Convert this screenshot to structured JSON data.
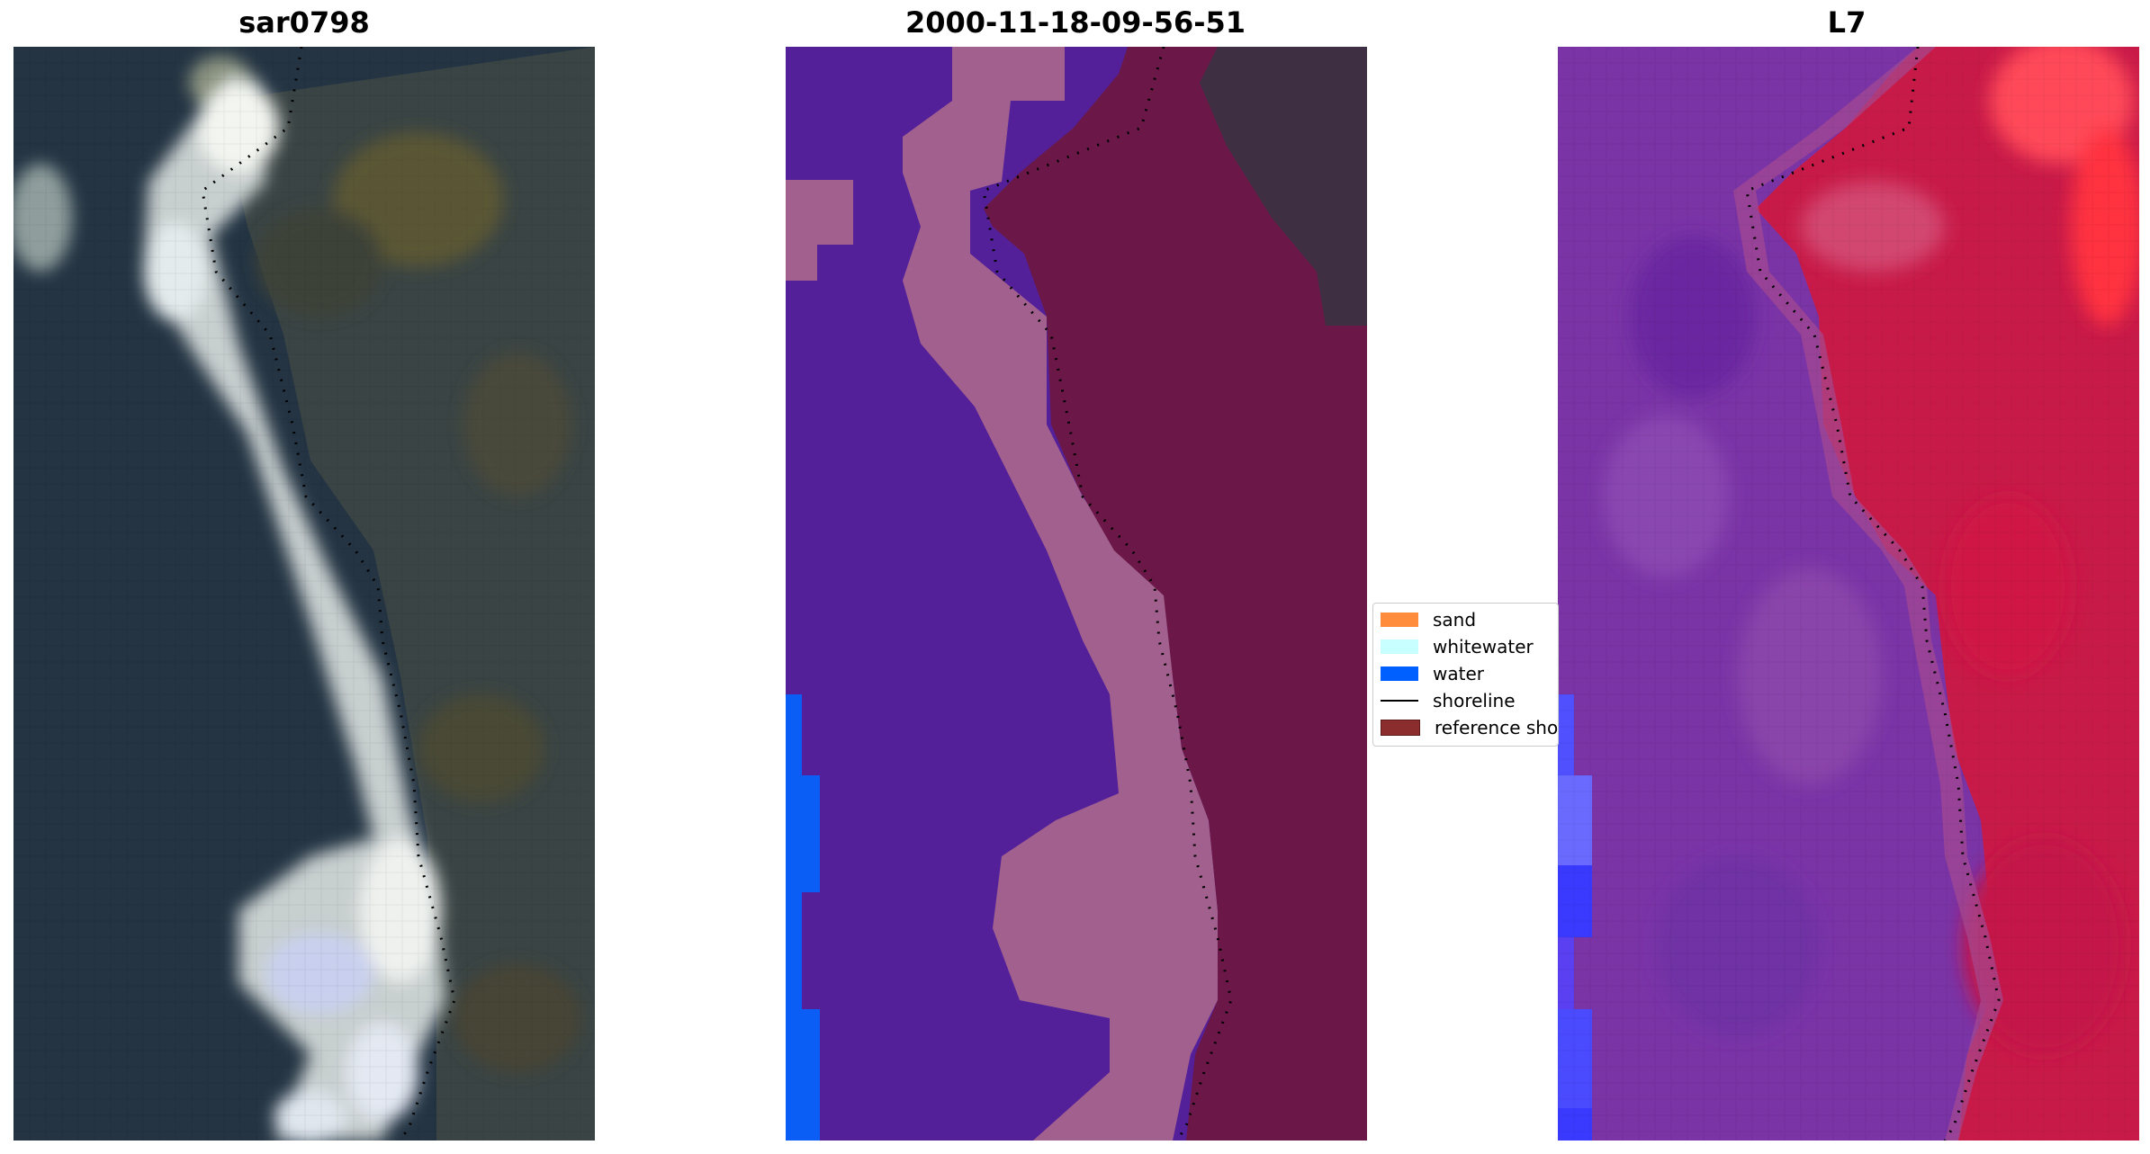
{
  "panels": [
    {
      "title": "sar0798",
      "name": "rgb-image"
    },
    {
      "title": "2000-11-18-09-56-51",
      "name": "classification-image"
    },
    {
      "title": "L7",
      "name": "index-image"
    }
  ],
  "legend": {
    "items": [
      {
        "label": "sand",
        "kind": "patch",
        "color": "#ff8c3c"
      },
      {
        "label": "whitewater",
        "kind": "patch",
        "color": "#c8ffff"
      },
      {
        "label": "water",
        "kind": "patch",
        "color": "#0060ff"
      },
      {
        "label": "shoreline",
        "kind": "line",
        "color": "#000000"
      },
      {
        "label": "reference shoreline",
        "kind": "patch",
        "color": "#8b2d2d"
      }
    ]
  },
  "colors": {
    "land_dark": "#2a3848",
    "vegetation": "#4d4a33",
    "surf_white": "#e6ecf0",
    "class_water": "#53209a",
    "class_whitewater": "#a2608e",
    "class_land_overlay": "#6b1848",
    "class_blue": "#0a5ef5",
    "index_purple": "#7a34a6",
    "index_red": "#c81a48",
    "index_bright_red": "#ff3040",
    "index_blue": "#4040ff"
  }
}
